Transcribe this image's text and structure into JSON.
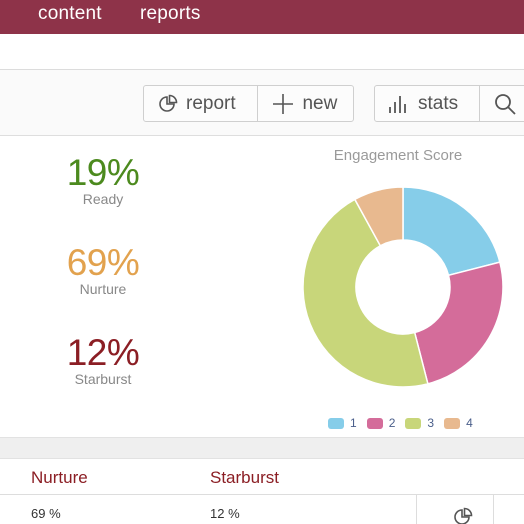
{
  "nav": {
    "content_label": "content",
    "reports_label": "reports"
  },
  "toolbar": {
    "report_label": "report",
    "new_label": "new",
    "stats_label": "stats"
  },
  "stats": [
    {
      "value": "19%",
      "label": "Ready"
    },
    {
      "value": "69%",
      "label": "Nurture"
    },
    {
      "value": "12%",
      "label": "Starburst"
    }
  ],
  "chart_data": {
    "type": "pie",
    "title": "Engagement Score",
    "categories": [
      "1",
      "2",
      "3",
      "4"
    ],
    "values": [
      21,
      25,
      46,
      8
    ],
    "colors": [
      "#86cde9",
      "#d46c9a",
      "#c8d67a",
      "#e8b98f"
    ],
    "donut": true,
    "legend": "bottom"
  },
  "table": {
    "headers": [
      "Nurture",
      "Starburst"
    ],
    "row": [
      "69 %",
      "12 %"
    ]
  },
  "colors": {
    "brand": "#8e3349",
    "ready": "#4c8a1e",
    "nurture": "#e2a24e",
    "starburst": "#8b1e24"
  }
}
